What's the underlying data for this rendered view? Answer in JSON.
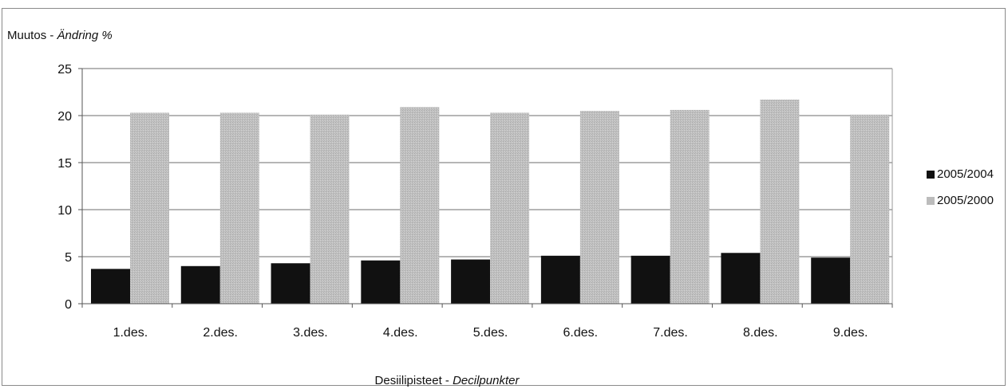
{
  "chart_data": {
    "type": "bar",
    "ylabel_main": "Muutos - ",
    "ylabel_italic": "Ändring %",
    "xlabel_main": "Desiilipisteet - ",
    "xlabel_italic": "Decilpunkter",
    "categories": [
      "1.des.",
      "2.des.",
      "3.des.",
      "4.des.",
      "5.des.",
      "6.des.",
      "7.des.",
      "8.des.",
      "9.des."
    ],
    "yticks": [
      "0",
      "5",
      "10",
      "15",
      "20",
      "25"
    ],
    "ylim": [
      0,
      25
    ],
    "grid": true,
    "legend_position": "right",
    "series": [
      {
        "name": "2005/2004",
        "color": "#111111",
        "values": [
          3.7,
          4.0,
          4.3,
          4.6,
          4.7,
          5.1,
          5.1,
          5.4,
          4.9
        ]
      },
      {
        "name": "2005/2000",
        "color": "#bcbcbc",
        "values": [
          20.3,
          20.3,
          20.1,
          20.9,
          20.3,
          20.5,
          20.6,
          21.7,
          20.1
        ]
      }
    ]
  }
}
